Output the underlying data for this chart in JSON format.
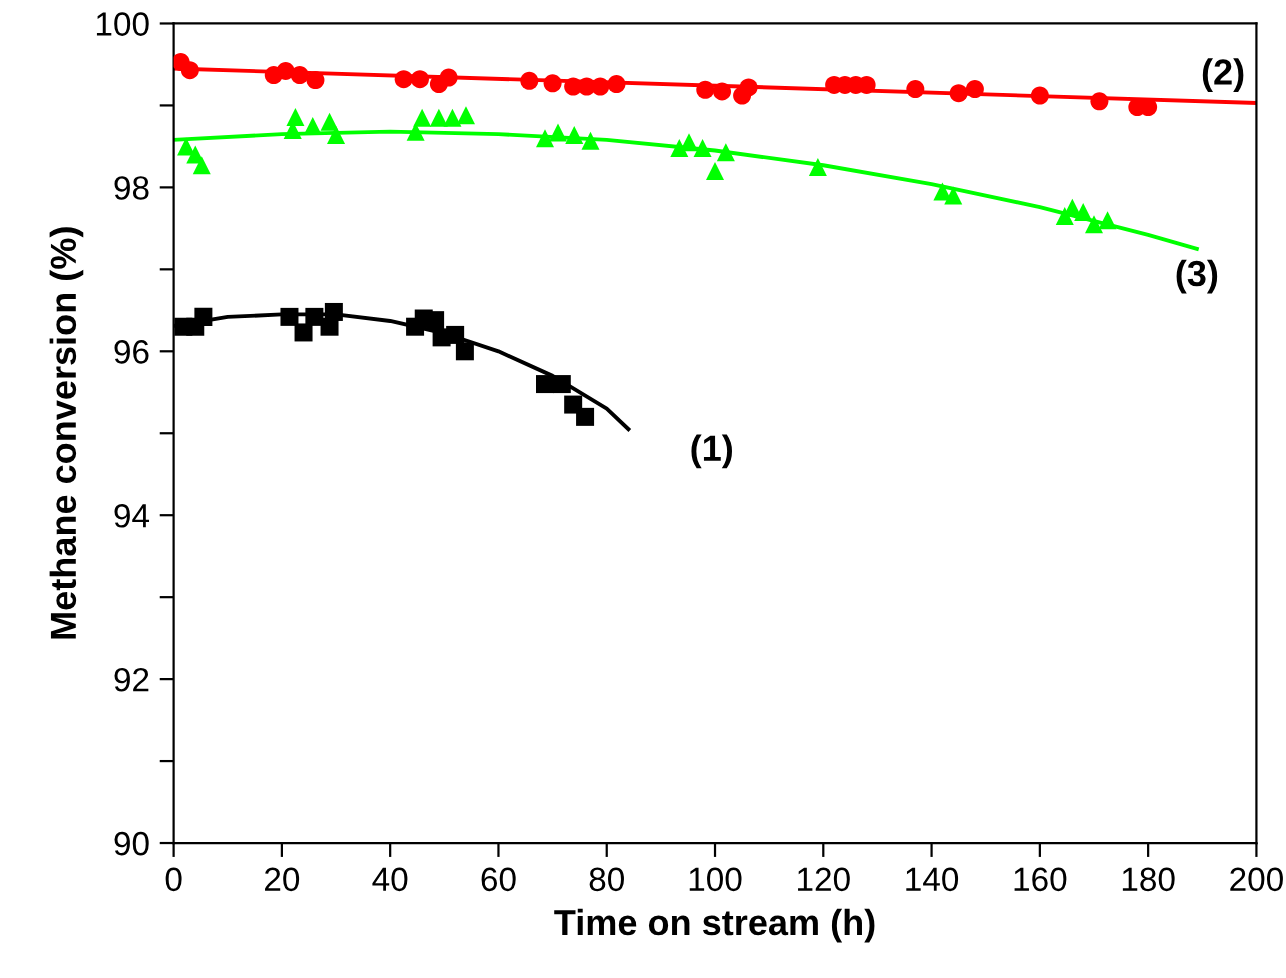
{
  "chart_data": {
    "type": "scatter",
    "xlabel": "Time on stream (h)",
    "ylabel": "Methane conversion (%)",
    "xlim": [
      0,
      200
    ],
    "xticks": [
      0,
      20,
      40,
      60,
      80,
      100,
      120,
      140,
      160,
      180,
      200
    ],
    "ylim": [
      90,
      100
    ],
    "yticks": [
      90,
      {
        "value": 91,
        "label": null
      },
      92,
      {
        "value": 93,
        "label": null
      },
      94,
      {
        "value": 95,
        "label": null
      },
      96,
      {
        "value": 97,
        "label": null
      },
      98,
      {
        "value": 99,
        "label": null
      },
      100
    ],
    "grid": false,
    "series": [
      {
        "marker": "square",
        "color": "#000000",
        "x": [
          1.8,
          4,
          5.5,
          21.4,
          24,
          26,
          28.8,
          29.6,
          44.6,
          46.2,
          48.3,
          49.5,
          52,
          53.8,
          68.6,
          71.7,
          73.8,
          76
        ],
        "values": [
          96.3,
          96.3,
          96.42,
          96.42,
          96.23,
          96.42,
          96.3,
          96.48,
          96.3,
          96.4,
          96.38,
          96.17,
          96.2,
          96.0,
          95.6,
          95.6,
          95.35,
          95.2
        ]
      },
      {
        "type": "line",
        "marker": "none",
        "color": "#000000",
        "x": [
          0,
          10,
          20,
          30,
          40,
          50,
          60,
          70,
          80,
          84
        ],
        "values": [
          96.31,
          96.42,
          96.45,
          96.45,
          96.37,
          96.22,
          96.0,
          95.7,
          95.3,
          95.05
        ]
      },
      {
        "marker": "circle",
        "color": "#ff0000",
        "x": [
          1.3,
          3,
          18.5,
          20.7,
          23.3,
          26.2,
          42.5,
          45.5,
          49,
          50.8,
          65.7,
          70,
          73.8,
          76.3,
          78.8,
          81.8,
          98.2,
          101.3,
          105,
          106.2,
          122,
          124,
          126,
          128,
          137,
          145,
          148,
          160,
          171,
          178,
          180
        ],
        "values": [
          99.53,
          99.43,
          99.37,
          99.42,
          99.37,
          99.31,
          99.32,
          99.32,
          99.26,
          99.34,
          99.3,
          99.27,
          99.23,
          99.23,
          99.23,
          99.26,
          99.19,
          99.17,
          99.12,
          99.22,
          99.25,
          99.25,
          99.25,
          99.25,
          99.2,
          99.15,
          99.2,
          99.12,
          99.05,
          98.98,
          98.98
        ]
      },
      {
        "type": "line",
        "marker": "none",
        "color": "#ff0000",
        "x": [
          0,
          200
        ],
        "values": [
          99.45,
          99.03
        ]
      },
      {
        "marker": "triangle",
        "color": "#00ff00",
        "x": [
          2.3,
          4,
          5.2,
          22,
          22.5,
          25.7,
          28.8,
          30,
          44.7,
          45.9,
          49,
          51.5,
          54,
          68.6,
          71,
          74,
          77,
          93.4,
          95.2,
          97.7,
          100,
          102,
          119,
          142,
          144,
          164.6,
          166,
          168,
          170,
          172.5
        ],
        "values": [
          98.5,
          98.4,
          98.27,
          98.7,
          98.86,
          98.75,
          98.8,
          98.64,
          98.68,
          98.85,
          98.85,
          98.85,
          98.88,
          98.6,
          98.67,
          98.64,
          98.57,
          98.48,
          98.55,
          98.48,
          98.2,
          98.43,
          98.25,
          97.95,
          97.9,
          97.65,
          97.75,
          97.7,
          97.55,
          97.6
        ]
      },
      {
        "type": "line",
        "marker": "none",
        "color": "#00ff00",
        "x": [
          0,
          20,
          40,
          60,
          80,
          100,
          120,
          140,
          160,
          180,
          189
        ],
        "values": [
          98.58,
          98.65,
          98.68,
          98.65,
          98.58,
          98.45,
          98.27,
          98.04,
          97.76,
          97.42,
          97.25
        ]
      }
    ],
    "annotations": [
      "(1)",
      "(2)",
      "(3)"
    ]
  }
}
